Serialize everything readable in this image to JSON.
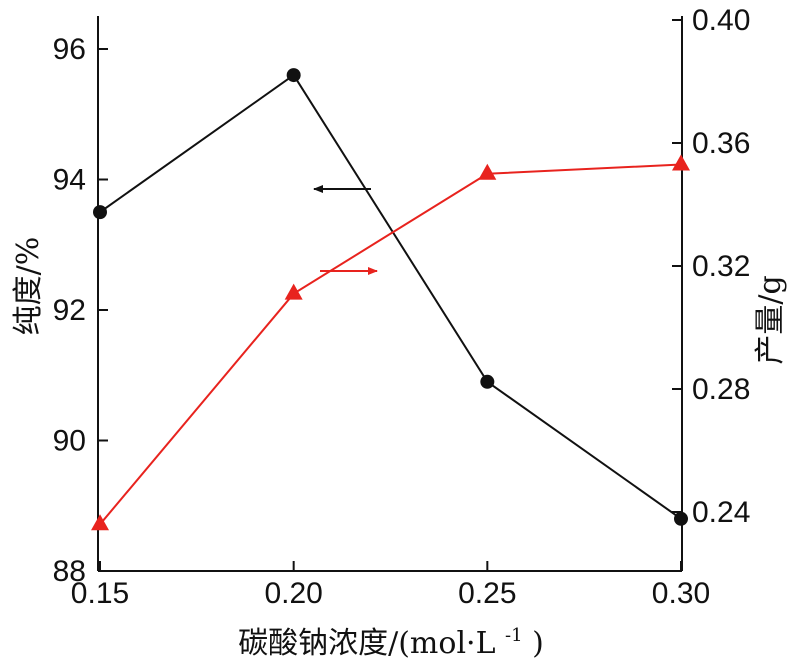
{
  "chart_data": {
    "type": "line",
    "x": [
      0.15,
      0.2,
      0.25,
      0.3
    ],
    "xlabel": {
      "main": "碳酸钠浓度/(mol·L",
      "sup": "-1",
      "close": ")"
    },
    "xlim": [
      0.15,
      0.3
    ],
    "xticks": [
      "0.15",
      "0.20",
      "0.25",
      "0.30"
    ],
    "ylabel_left": "纯度/%",
    "ylim_left": [
      88,
      96.4
    ],
    "yticks_left": [
      "88",
      "90",
      "92",
      "94",
      "96"
    ],
    "ylabel_right": "产量/g",
    "ylim_right": [
      0.22,
      0.4
    ],
    "yticks_right": [
      "0.24",
      "0.28",
      "0.32",
      "0.36",
      "0.40"
    ],
    "grid": false,
    "series": [
      {
        "axis": "left",
        "marker": "circle",
        "color": "#111111",
        "values": [
          93.5,
          95.6,
          90.9,
          88.8
        ]
      },
      {
        "axis": "right",
        "marker": "triangle",
        "color": "#e8231e",
        "values": [
          0.236,
          0.311,
          0.35,
          0.353
        ]
      }
    ],
    "annotations": [
      {
        "arrow": "left",
        "color": "#111111",
        "series": 0
      },
      {
        "arrow": "right",
        "color": "#e8231e",
        "series": 1
      }
    ]
  }
}
